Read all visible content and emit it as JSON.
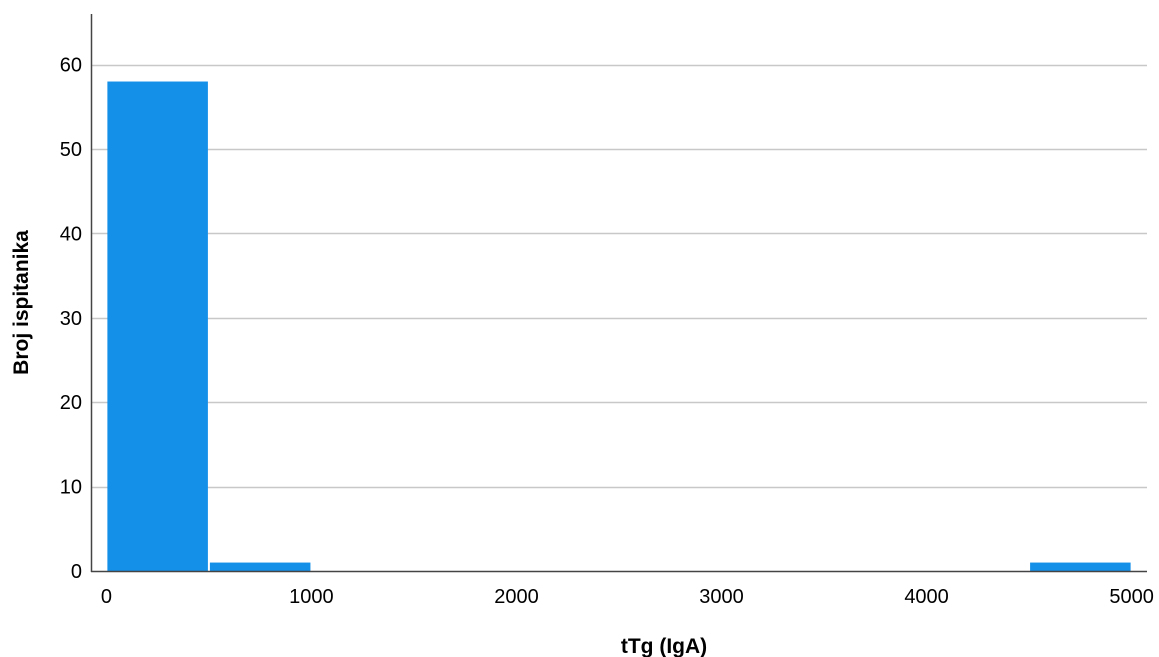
{
  "chart_data": {
    "type": "bar",
    "title": "",
    "xlabel": "tTg (IgA)",
    "ylabel": "Broj ispitanika",
    "xlim": [
      -75,
      5075
    ],
    "ylim": [
      0,
      66
    ],
    "bin_width": 500,
    "bars": [
      {
        "x_start": 0,
        "x_end": 500,
        "value": 58
      },
      {
        "x_start": 500,
        "x_end": 1000,
        "value": 1
      },
      {
        "x_start": 4500,
        "x_end": 5000,
        "value": 1
      }
    ],
    "x_ticks": [
      0,
      1000,
      2000,
      3000,
      4000,
      5000
    ],
    "x_tick_labels": [
      "0",
      "1000",
      "2000",
      "3000",
      "4000",
      "5000"
    ],
    "y_ticks": [
      0,
      10,
      20,
      30,
      40,
      50,
      60
    ],
    "y_tick_labels": [
      "0",
      "10",
      "20",
      "30",
      "40",
      "50",
      "60"
    ],
    "grid": "horizontal",
    "legend": "none",
    "colors": {
      "bar": "#1590e8",
      "grid": "#c8c8c8",
      "axis": "#444444"
    }
  }
}
